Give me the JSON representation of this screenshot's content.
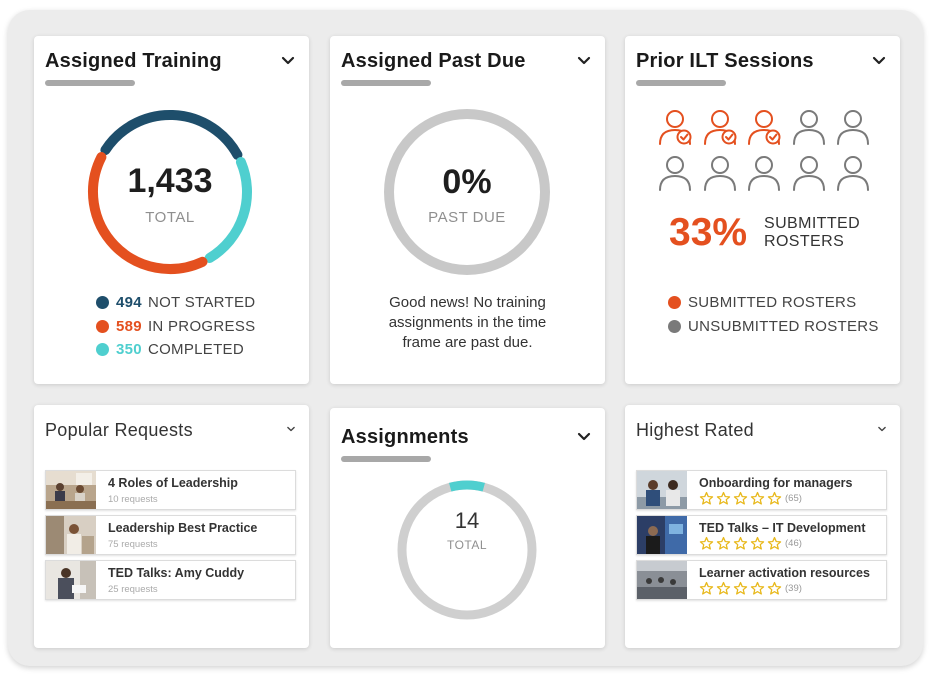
{
  "assigned_training": {
    "title": "Assigned Training",
    "total": "1,433",
    "total_label": "TOTAL",
    "segments": [
      {
        "count": "494",
        "label": "NOT STARTED",
        "value": 494,
        "color": "#1e4e6b"
      },
      {
        "count": "589",
        "label": "IN PROGRESS",
        "value": 589,
        "color": "#e4501f"
      },
      {
        "count": "350",
        "label": "COMPLETED",
        "value": 350,
        "color": "#4fcfcf"
      }
    ]
  },
  "assigned_past_due": {
    "title": "Assigned Past Due",
    "percent": "0%",
    "percent_label": "PAST DUE",
    "message": "Good news! No training assignments in the time frame are past due.",
    "ring_color": "#c8c8c8"
  },
  "prior_ilt": {
    "title": "Prior ILT Sessions",
    "percent": "33%",
    "percent_label_line1": "SUBMITTED",
    "percent_label_line2": "ROSTERS",
    "submitted_fraction": 0.33,
    "icons_total": 10,
    "icons_submitted": 3,
    "legend": [
      {
        "label": "SUBMITTED ROSTERS",
        "color": "#e4501f"
      },
      {
        "label": "UNSUBMITTED ROSTERS",
        "color": "#7a7a7a"
      }
    ]
  },
  "popular_requests": {
    "title": "Popular Requests",
    "items": [
      {
        "title": "4 Roles of Leadership",
        "sub": "10 requests"
      },
      {
        "title": "Leadership Best Practice",
        "sub": "75 requests"
      },
      {
        "title": "TED Talks: Amy Cuddy",
        "sub": "25 requests"
      }
    ]
  },
  "assignments": {
    "title": "Assignments",
    "total": "14",
    "total_label": "TOTAL",
    "accent_color": "#4fcfcf"
  },
  "highest_rated": {
    "title": "Highest Rated",
    "items": [
      {
        "title": "Onboarding for managers",
        "count": "(65)",
        "stars": 5
      },
      {
        "title": "TED Talks – IT Development",
        "count": "(46)",
        "stars": 5
      },
      {
        "title": "Learner activation resources",
        "count": "(39)",
        "stars": 5
      }
    ]
  },
  "icons": {
    "chevron": "chevron-down-icon",
    "person": "person-icon",
    "person_check": "person-check-icon",
    "star": "star-outline-icon"
  }
}
